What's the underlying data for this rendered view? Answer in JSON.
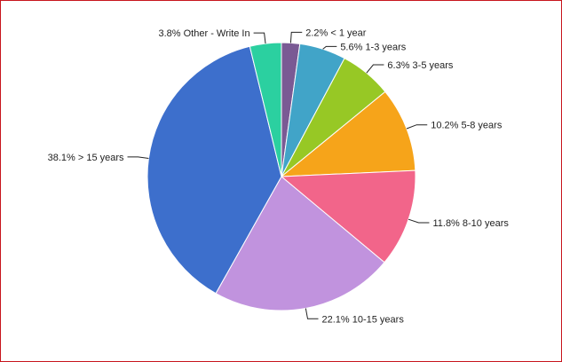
{
  "colors": {
    "frame_border": "#c8161d",
    "background": "#ffffff",
    "label_text": "#222222"
  },
  "chart_data": {
    "type": "pie",
    "title": "",
    "start_angle_deg": 0,
    "direction": "clockwise",
    "legend": "none",
    "slices": [
      {
        "category": "< 1 year",
        "value": 2.2,
        "label": "2.2% < 1 year",
        "color": "#7a5a94"
      },
      {
        "category": "1-3 years",
        "value": 5.6,
        "label": "5.6% 1-3 years",
        "color": "#41a4c8"
      },
      {
        "category": "3-5 years",
        "value": 6.3,
        "label": "6.3% 3-5 years",
        "color": "#97c825"
      },
      {
        "category": "5-8 years",
        "value": 10.2,
        "label": "10.2% 5-8 years",
        "color": "#f6a41a"
      },
      {
        "category": "8-10 years",
        "value": 11.8,
        "label": "11.8% 8-10 years",
        "color": "#f2658a"
      },
      {
        "category": "10-15 years",
        "value": 22.1,
        "label": "22.1% 10-15 years",
        "color": "#c193de"
      },
      {
        "category": "> 15 years",
        "value": 38.1,
        "label": "38.1% > 15 years",
        "color": "#3d6fcc"
      },
      {
        "category": "Other - Write In",
        "value": 3.8,
        "label": "3.8% Other - Write In",
        "color": "#2bd0a0"
      }
    ]
  }
}
